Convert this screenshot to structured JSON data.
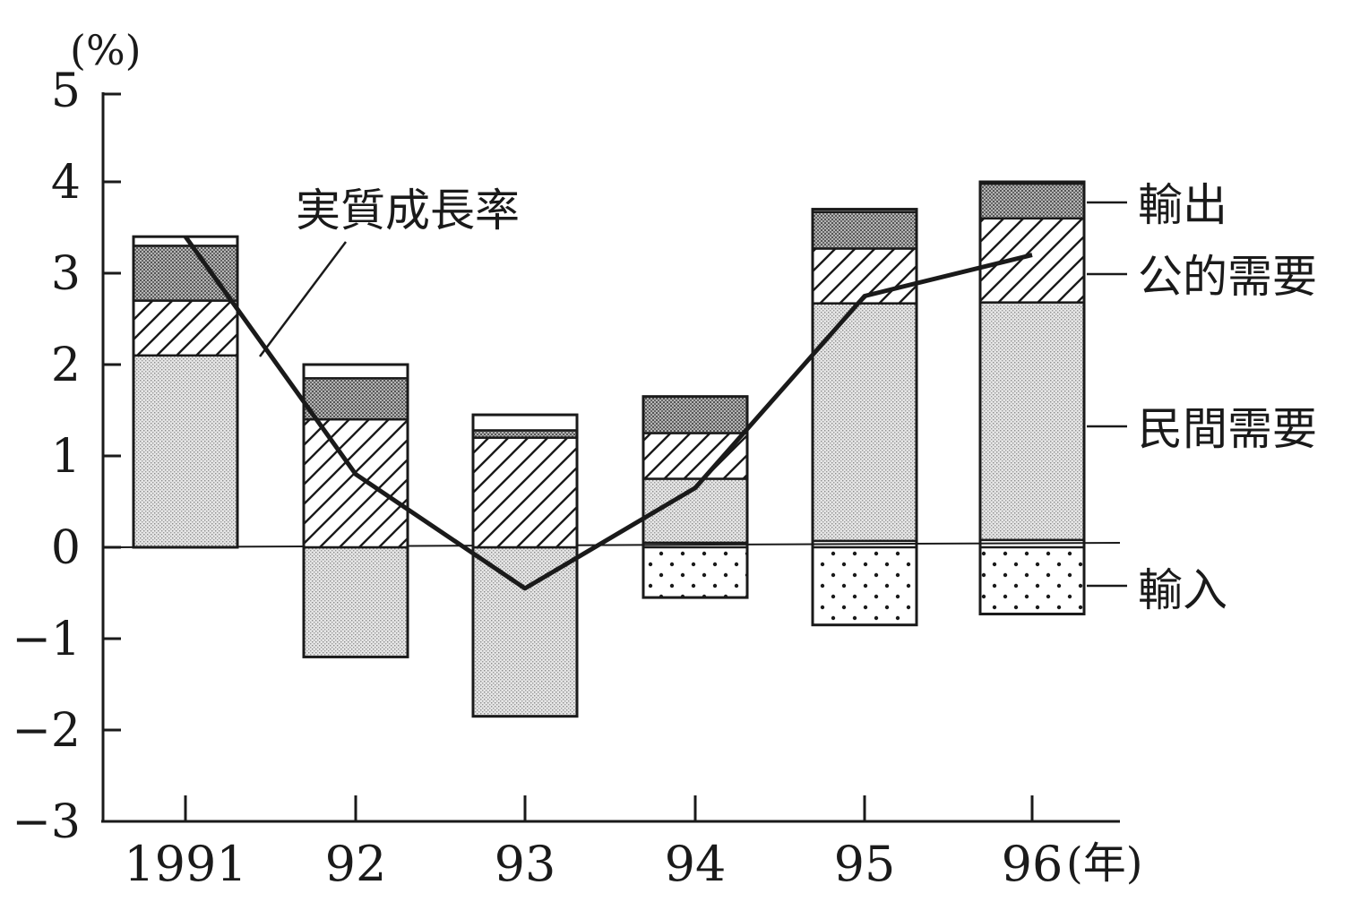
{
  "chart_data": {
    "type": "bar",
    "stacked": true,
    "y_unit": "(%)",
    "x_unit": "(年)",
    "categories": [
      "1991",
      "92",
      "93",
      "94",
      "95",
      "96"
    ],
    "ylim": [
      -3,
      5
    ],
    "yticks": [
      "5",
      "4",
      "3",
      "2",
      "1",
      "0",
      "−1",
      "−2",
      "−3"
    ],
    "ytick_values": [
      5,
      4,
      3,
      2,
      1,
      0,
      -1,
      -2,
      -3
    ],
    "grid": false,
    "series": [
      {
        "name": "輸入",
        "pattern": "dots",
        "values": [
          0.0,
          0.0,
          0.0,
          -0.55,
          -0.85,
          -0.73
        ]
      },
      {
        "name": "民間需要",
        "pattern": "fine-dots",
        "values": [
          2.1,
          -1.2,
          -1.85,
          0.7,
          2.6,
          2.6
        ]
      },
      {
        "name": "公的需要",
        "pattern": "hatch",
        "values": [
          0.6,
          1.4,
          1.2,
          0.5,
          0.6,
          0.92
        ]
      },
      {
        "name": "輸出",
        "pattern": "dense-dots",
        "values": [
          0.6,
          0.45,
          0.08,
          0.4,
          0.4,
          0.38
        ]
      }
    ],
    "base_values": [
      0.0,
      0.0,
      0.0,
      0.05,
      0.07,
      0.08
    ],
    "totals": [
      3.4,
      2.0,
      1.45,
      1.65,
      3.7,
      4.0
    ],
    "line": {
      "name": "実質成長率",
      "values": [
        3.4,
        0.8,
        -0.45,
        0.65,
        2.75,
        3.2
      ]
    },
    "legend_labels": [
      "輸出",
      "公的需要",
      "民間需要",
      "輸入"
    ]
  }
}
